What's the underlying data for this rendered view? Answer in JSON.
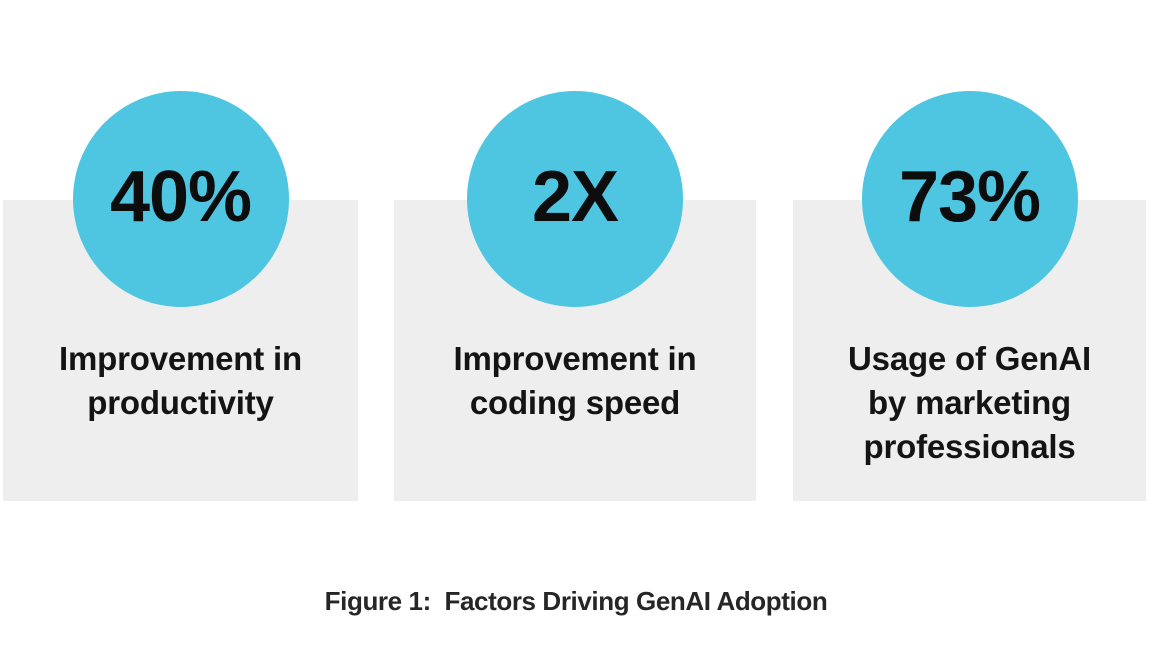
{
  "colors": {
    "circle_fill": "#4EC6E2",
    "card_background": "#EEEEEF",
    "stat_text": "#0d0d0d",
    "label_text": "#141414",
    "caption_text": "#262626",
    "page_background": "#ffffff"
  },
  "cards": [
    {
      "value": "40%",
      "label": "Improvement in\nproductivity"
    },
    {
      "value": "2X",
      "label": "Improvement in\ncoding speed"
    },
    {
      "value": "73%",
      "label": "Usage of GenAI\nby marketing\nprofessionals"
    }
  ],
  "caption": "Figure 1:  Factors Driving GenAI Adoption",
  "chart_data": {
    "type": "table",
    "title": "Figure 1:  Factors Driving GenAI Adoption",
    "categories": [
      "Improvement in productivity",
      "Improvement in coding speed",
      "Usage of GenAI by marketing professionals"
    ],
    "values": [
      "40%",
      "2X",
      "73%"
    ],
    "values_numeric": [
      40,
      2,
      73
    ],
    "units": [
      "%",
      "x",
      "%"
    ],
    "legend_position": "none",
    "grid": false
  }
}
